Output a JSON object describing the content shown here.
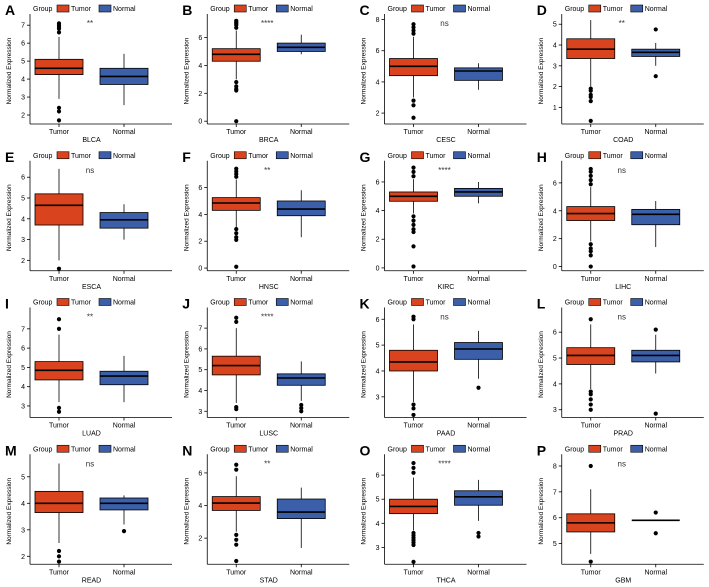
{
  "figure": {
    "legend_title": "Group",
    "group_labels": [
      "Tumor",
      "Normal"
    ],
    "colors": {
      "Tumor": "#d9441e",
      "Normal": "#3c5fa9",
      "outline": "#000000"
    },
    "ylabel": "Normalized Expression"
  },
  "chart_data": [
    {
      "type": "box",
      "letter": "A",
      "cancer": "BLCA",
      "significance": "**",
      "ylim": [
        1.5,
        7.4
      ],
      "yticks": [
        2,
        3,
        4,
        5,
        6,
        7
      ],
      "legend": "top-left",
      "grid": false,
      "series": [
        {
          "name": "Tumor",
          "q1": 4.25,
          "median": 4.6,
          "q3": 5.1,
          "whisker_low": 2.9,
          "whisker_high": 6.35,
          "outliers": [
            6.6,
            6.8,
            6.9,
            7.0,
            7.1,
            2.4,
            2.2,
            1.7
          ]
        },
        {
          "name": "Normal",
          "q1": 3.7,
          "median": 4.15,
          "q3": 4.6,
          "whisker_low": 2.55,
          "whisker_high": 5.4,
          "outliers": []
        }
      ]
    },
    {
      "type": "box",
      "letter": "B",
      "cancer": "BRCA",
      "significance": "****",
      "ylim": [
        -0.2,
        7.4
      ],
      "yticks": [
        0,
        2,
        4,
        6
      ],
      "legend": "top-left",
      "grid": false,
      "series": [
        {
          "name": "Tumor",
          "q1": 4.3,
          "median": 4.8,
          "q3": 5.2,
          "whisker_low": 3.0,
          "whisker_high": 6.5,
          "outliers": [
            6.7,
            6.9,
            7.0,
            7.1,
            7.2,
            2.8,
            2.5,
            2.3,
            2.2,
            0.0
          ]
        },
        {
          "name": "Normal",
          "q1": 5.0,
          "median": 5.3,
          "q3": 5.6,
          "whisker_low": 4.8,
          "whisker_high": 6.2,
          "outliers": []
        }
      ]
    },
    {
      "type": "box",
      "letter": "C",
      "cancer": "CESC",
      "significance": "ns",
      "ylim": [
        1.3,
        8.1
      ],
      "yticks": [
        2,
        4,
        6,
        8
      ],
      "legend": "top-left",
      "grid": false,
      "series": [
        {
          "name": "Tumor",
          "q1": 4.4,
          "median": 5.0,
          "q3": 5.5,
          "whisker_low": 3.0,
          "whisker_high": 6.9,
          "outliers": [
            7.1,
            7.3,
            7.5,
            7.7,
            2.8,
            2.5,
            1.7
          ]
        },
        {
          "name": "Normal",
          "q1": 4.1,
          "median": 4.7,
          "q3": 4.9,
          "whisker_low": 3.5,
          "whisker_high": 5.2,
          "outliers": []
        }
      ]
    },
    {
      "type": "box",
      "letter": "D",
      "cancer": "COAD",
      "significance": "**",
      "ylim": [
        0.2,
        5.3
      ],
      "yticks": [
        1,
        2,
        3,
        4,
        5
      ],
      "legend": "top-left",
      "grid": false,
      "series": [
        {
          "name": "Tumor",
          "q1": 3.35,
          "median": 3.8,
          "q3": 4.3,
          "whisker_low": 2.0,
          "whisker_high": 5.2,
          "outliers": [
            1.9,
            1.8,
            1.6,
            1.5,
            1.3,
            0.35
          ]
        },
        {
          "name": "Normal",
          "q1": 3.45,
          "median": 3.65,
          "q3": 3.8,
          "whisker_low": 3.0,
          "whisker_high": 4.1,
          "outliers": [
            4.75,
            2.5
          ]
        }
      ]
    },
    {
      "type": "box",
      "letter": "E",
      "cancer": "ESCA",
      "significance": "ns",
      "ylim": [
        1.5,
        6.6
      ],
      "yticks": [
        2,
        3,
        4,
        5,
        6
      ],
      "legend": "top-left",
      "grid": false,
      "series": [
        {
          "name": "Tumor",
          "q1": 3.7,
          "median": 4.65,
          "q3": 5.2,
          "whisker_low": 2.0,
          "whisker_high": 6.4,
          "outliers": [
            1.6
          ]
        },
        {
          "name": "Normal",
          "q1": 3.55,
          "median": 3.95,
          "q3": 4.3,
          "whisker_low": 3.0,
          "whisker_high": 4.7,
          "outliers": []
        }
      ]
    },
    {
      "type": "box",
      "letter": "F",
      "cancer": "HNSC",
      "significance": "**",
      "ylim": [
        -0.2,
        7.7
      ],
      "yticks": [
        0,
        2,
        4,
        6
      ],
      "legend": "top-left",
      "grid": false,
      "series": [
        {
          "name": "Tumor",
          "q1": 4.3,
          "median": 4.85,
          "q3": 5.25,
          "whisker_low": 3.0,
          "whisker_high": 6.6,
          "outliers": [
            6.8,
            7.0,
            7.2,
            7.4,
            2.9,
            2.6,
            2.3,
            2.1,
            0.1
          ]
        },
        {
          "name": "Normal",
          "q1": 3.9,
          "median": 4.4,
          "q3": 5.0,
          "whisker_low": 2.3,
          "whisker_high": 5.8,
          "outliers": []
        }
      ]
    },
    {
      "type": "box",
      "letter": "G",
      "cancer": "KIRC",
      "significance": "****",
      "ylim": [
        -0.2,
        7.2
      ],
      "yticks": [
        0,
        2,
        4,
        6
      ],
      "legend": "top-left",
      "grid": false,
      "series": [
        {
          "name": "Tumor",
          "q1": 4.65,
          "median": 5.0,
          "q3": 5.3,
          "whisker_low": 3.8,
          "whisker_high": 6.2,
          "outliers": [
            6.4,
            6.7,
            7.0,
            3.6,
            3.3,
            3.0,
            2.7,
            2.5,
            1.5,
            0.1
          ]
        },
        {
          "name": "Normal",
          "q1": 5.0,
          "median": 5.3,
          "q3": 5.55,
          "whisker_low": 4.5,
          "whisker_high": 6.0,
          "outliers": []
        }
      ]
    },
    {
      "type": "box",
      "letter": "H",
      "cancer": "LIHC",
      "significance": "ns",
      "ylim": [
        -0.3,
        7.3
      ],
      "yticks": [
        0,
        2,
        4,
        6
      ],
      "legend": "top-left",
      "grid": false,
      "series": [
        {
          "name": "Tumor",
          "q1": 3.3,
          "median": 3.8,
          "q3": 4.3,
          "whisker_low": 1.8,
          "whisker_high": 5.7,
          "outliers": [
            5.9,
            6.2,
            6.5,
            6.8,
            7.0,
            1.6,
            1.3,
            1.1,
            0.8,
            0.0
          ]
        },
        {
          "name": "Normal",
          "q1": 3.0,
          "median": 3.75,
          "q3": 4.1,
          "whisker_low": 1.4,
          "whisker_high": 4.7,
          "outliers": []
        }
      ]
    },
    {
      "type": "box",
      "letter": "I",
      "cancer": "LUAD",
      "significance": "**",
      "ylim": [
        2.4,
        7.9
      ],
      "yticks": [
        3,
        4,
        5,
        6,
        7
      ],
      "legend": "top-left",
      "grid": false,
      "series": [
        {
          "name": "Tumor",
          "q1": 4.35,
          "median": 4.85,
          "q3": 5.3,
          "whisker_low": 3.2,
          "whisker_high": 6.7,
          "outliers": [
            7.0,
            7.5,
            2.9,
            2.7
          ]
        },
        {
          "name": "Normal",
          "q1": 4.1,
          "median": 4.55,
          "q3": 4.8,
          "whisker_low": 3.2,
          "whisker_high": 5.6,
          "outliers": []
        }
      ]
    },
    {
      "type": "box",
      "letter": "J",
      "cancer": "LUSC",
      "significance": "****",
      "ylim": [
        2.7,
        7.8
      ],
      "yticks": [
        3,
        4,
        5,
        6,
        7
      ],
      "legend": "top-left",
      "grid": false,
      "series": [
        {
          "name": "Tumor",
          "q1": 4.75,
          "median": 5.2,
          "q3": 5.65,
          "whisker_low": 3.4,
          "whisker_high": 7.0,
          "outliers": [
            7.3,
            7.5,
            3.2,
            3.1
          ]
        },
        {
          "name": "Normal",
          "q1": 4.25,
          "median": 4.6,
          "q3": 4.8,
          "whisker_low": 3.5,
          "whisker_high": 5.4,
          "outliers": [
            3.3,
            3.15,
            3.0
          ]
        }
      ]
    },
    {
      "type": "box",
      "letter": "K",
      "cancer": "PAAD",
      "significance": "ns",
      "ylim": [
        2.2,
        6.3
      ],
      "yticks": [
        3,
        4,
        5,
        6
      ],
      "legend": "top-left",
      "grid": false,
      "series": [
        {
          "name": "Tumor",
          "q1": 4.0,
          "median": 4.35,
          "q3": 4.8,
          "whisker_low": 2.8,
          "whisker_high": 5.8,
          "outliers": [
            6.0,
            6.1,
            2.7,
            2.55,
            2.3
          ]
        },
        {
          "name": "Normal",
          "q1": 4.45,
          "median": 4.85,
          "q3": 5.1,
          "whisker_low": 3.7,
          "whisker_high": 5.55,
          "outliers": [
            3.35
          ]
        }
      ]
    },
    {
      "type": "box",
      "letter": "L",
      "cancer": "PRAD",
      "significance": "ns",
      "ylim": [
        2.7,
        6.8
      ],
      "yticks": [
        3,
        4,
        5,
        6
      ],
      "legend": "top-left",
      "grid": false,
      "series": [
        {
          "name": "Tumor",
          "q1": 4.75,
          "median": 5.1,
          "q3": 5.4,
          "whisker_low": 3.8,
          "whisker_high": 6.3,
          "outliers": [
            6.5,
            3.7,
            3.6,
            3.4,
            3.2,
            3.0
          ]
        },
        {
          "name": "Normal",
          "q1": 4.85,
          "median": 5.1,
          "q3": 5.3,
          "whisker_low": 4.4,
          "whisker_high": 5.9,
          "outliers": [
            6.1,
            2.85
          ]
        }
      ]
    },
    {
      "type": "box",
      "letter": "M",
      "cancer": "READ",
      "significance": "ns",
      "ylim": [
        1.7,
        5.7
      ],
      "yticks": [
        2,
        3,
        4,
        5
      ],
      "legend": "top-left",
      "grid": false,
      "series": [
        {
          "name": "Tumor",
          "q1": 3.65,
          "median": 4.0,
          "q3": 4.45,
          "whisker_low": 2.5,
          "whisker_high": 5.5,
          "outliers": [
            2.2,
            2.0,
            1.8
          ]
        },
        {
          "name": "Normal",
          "q1": 3.75,
          "median": 4.0,
          "q3": 4.2,
          "whisker_low": 3.2,
          "whisker_high": 4.3,
          "outliers": [
            2.95
          ]
        }
      ]
    },
    {
      "type": "box",
      "letter": "N",
      "cancer": "STAD",
      "significance": "**",
      "ylim": [
        0.4,
        6.9
      ],
      "yticks": [
        2,
        4,
        6
      ],
      "legend": "top-left",
      "grid": false,
      "series": [
        {
          "name": "Tumor",
          "q1": 3.7,
          "median": 4.15,
          "q3": 4.55,
          "whisker_low": 2.4,
          "whisker_high": 5.8,
          "outliers": [
            6.2,
            6.5,
            2.2,
            1.9,
            1.6,
            0.6
          ]
        },
        {
          "name": "Normal",
          "q1": 3.2,
          "median": 3.6,
          "q3": 4.4,
          "whisker_low": 1.4,
          "whisker_high": 5.1,
          "outliers": []
        }
      ]
    },
    {
      "type": "box",
      "letter": "O",
      "cancer": "THCA",
      "significance": "****",
      "ylim": [
        2.3,
        6.7
      ],
      "yticks": [
        3,
        4,
        5,
        6
      ],
      "legend": "top-left",
      "grid": false,
      "series": [
        {
          "name": "Tumor",
          "q1": 4.4,
          "median": 4.7,
          "q3": 5.0,
          "whisker_low": 3.7,
          "whisker_high": 5.9,
          "outliers": [
            6.1,
            6.3,
            6.5,
            3.6,
            3.5,
            3.4,
            3.3,
            3.2,
            3.1,
            2.4
          ]
        },
        {
          "name": "Normal",
          "q1": 4.75,
          "median": 5.1,
          "q3": 5.35,
          "whisker_low": 4.1,
          "whisker_high": 5.8,
          "outliers": [
            3.6,
            3.45
          ]
        }
      ]
    },
    {
      "type": "box",
      "letter": "P",
      "cancer": "GBM",
      "significance": "ns",
      "ylim": [
        4.2,
        8.3
      ],
      "yticks": [
        5,
        6,
        7,
        8
      ],
      "legend": "top-left",
      "grid": false,
      "series": [
        {
          "name": "Tumor",
          "q1": 5.45,
          "median": 5.8,
          "q3": 6.15,
          "whisker_low": 4.6,
          "whisker_high": 7.1,
          "outliers": [
            8.0,
            4.3
          ]
        },
        {
          "name": "Normal",
          "q1": 5.9,
          "median": 5.9,
          "q3": 5.9,
          "whisker_low": 5.9,
          "whisker_high": 5.9,
          "outliers": [
            6.2,
            5.4
          ]
        }
      ]
    }
  ]
}
